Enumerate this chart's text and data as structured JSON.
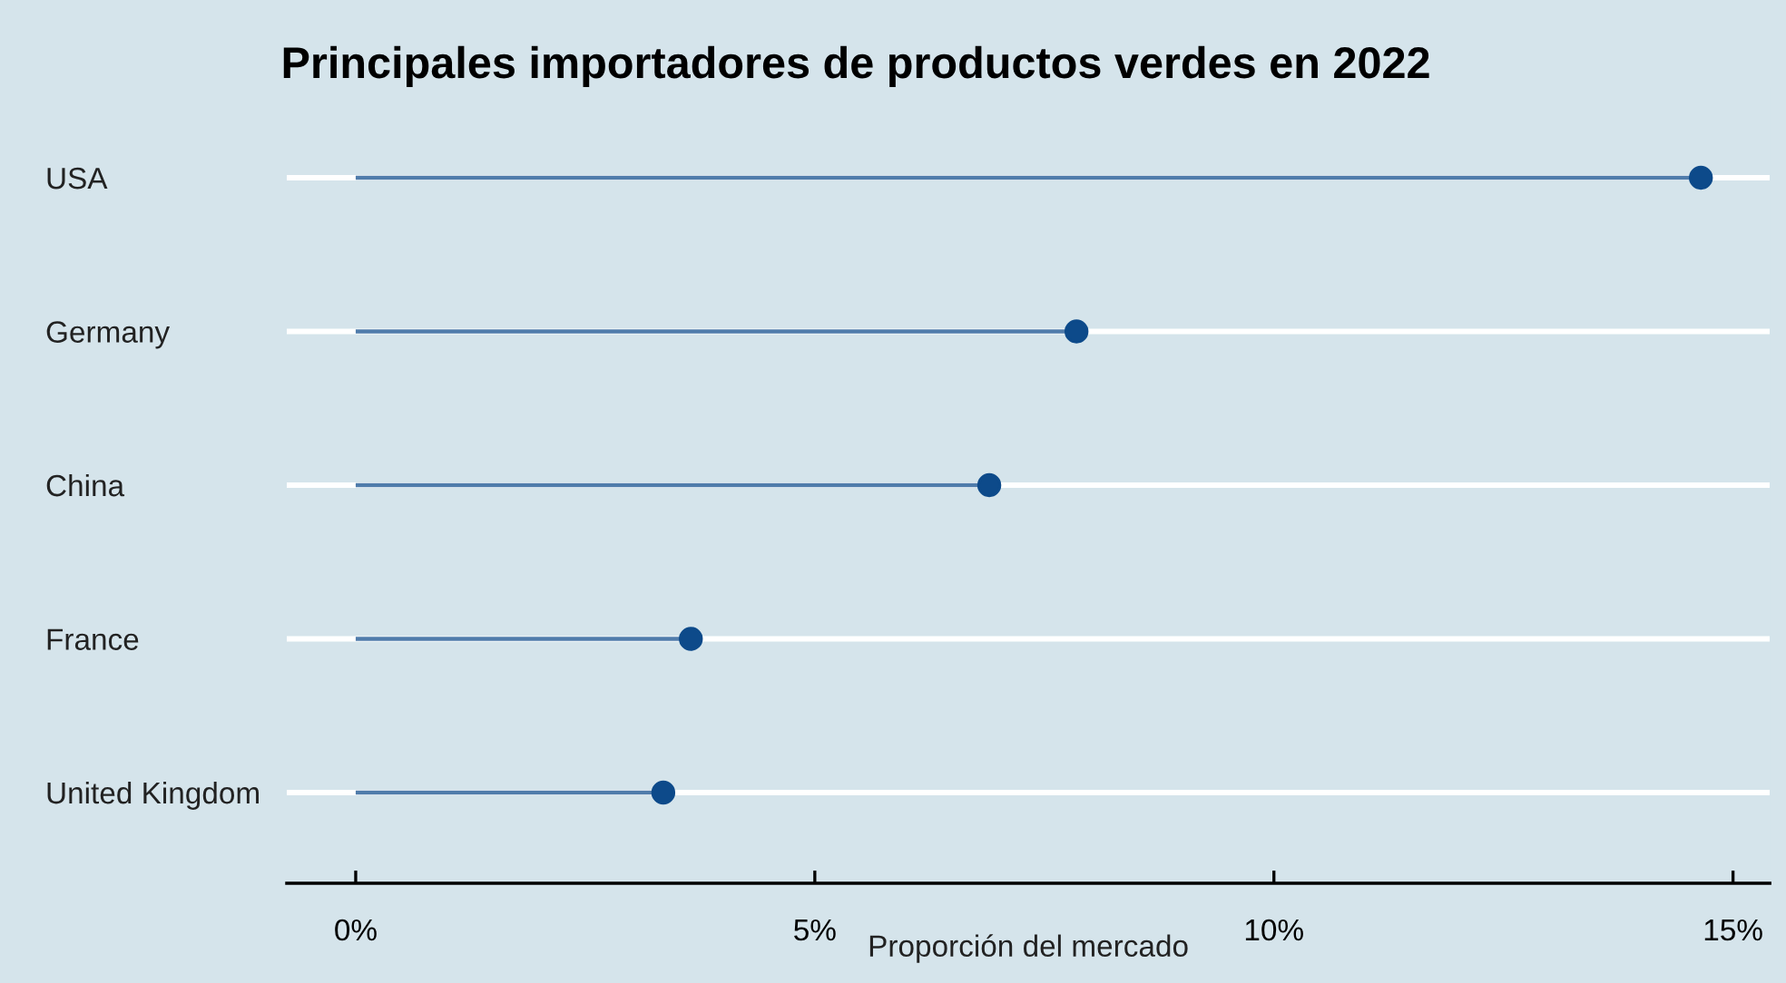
{
  "chart_data": {
    "type": "lollipop",
    "orientation": "horizontal",
    "title": "Principales importadores de productos verdes en 2022",
    "xlabel": "Proporción del mercado",
    "categories": [
      "USA",
      "Germany",
      "China",
      "France",
      "United Kingdom"
    ],
    "values": [
      14.65,
      7.85,
      6.9,
      3.65,
      3.35
    ],
    "color": "#0d4a8a",
    "xlim": [
      -0.75,
      15.4
    ],
    "xticks": [
      {
        "value": 0,
        "label": "0%"
      },
      {
        "value": 5,
        "label": "5%"
      },
      {
        "value": 10,
        "label": "10%"
      },
      {
        "value": 15,
        "label": "15%"
      }
    ],
    "grid": "y",
    "marker": "circle"
  }
}
